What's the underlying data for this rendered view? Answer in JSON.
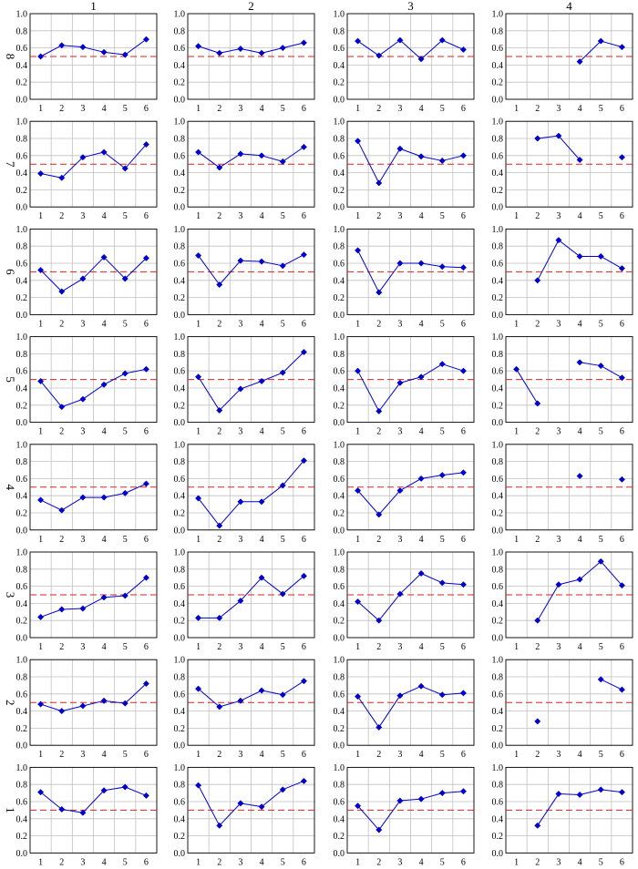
{
  "colors": {
    "series": "#0000cc",
    "threshold": "#dd2222",
    "grid": "#c0c0c0",
    "axis": "#000000"
  },
  "chart_data": {
    "type": "line",
    "layout": "small-multiples grid, 8 rows x 4 columns",
    "column_labels": [
      "1",
      "2",
      "3",
      "4"
    ],
    "row_labels": [
      "8",
      "7",
      "6",
      "5",
      "4",
      "3",
      "2",
      "1"
    ],
    "x": [
      1,
      2,
      3,
      4,
      5,
      6
    ],
    "xticks": [
      "1",
      "2",
      "3",
      "4",
      "5",
      "6"
    ],
    "yticks": [
      "0.0",
      "0.2",
      "0.4",
      "0.6",
      "0.8",
      "1.0"
    ],
    "ylim": [
      0,
      1
    ],
    "threshold": 0.5,
    "grid": true,
    "panels": [
      [
        [
          0.5,
          0.63,
          0.61,
          0.55,
          0.52,
          0.7
        ],
        [
          0.62,
          0.54,
          0.59,
          0.54,
          0.6,
          0.66
        ],
        [
          0.68,
          0.51,
          0.69,
          0.47,
          0.69,
          0.58
        ],
        [
          null,
          null,
          null,
          0.44,
          0.68,
          0.61
        ]
      ],
      [
        [
          0.39,
          0.34,
          0.58,
          0.64,
          0.45,
          0.73
        ],
        [
          0.64,
          0.46,
          0.62,
          0.6,
          0.53,
          0.7
        ],
        [
          0.77,
          0.28,
          0.68,
          0.59,
          0.54,
          0.6
        ],
        [
          null,
          0.8,
          0.83,
          0.55,
          null,
          0.58
        ]
      ],
      [
        [
          0.52,
          0.27,
          0.42,
          0.67,
          0.42,
          0.66
        ],
        [
          0.69,
          0.35,
          0.63,
          0.62,
          0.57,
          0.7
        ],
        [
          0.75,
          0.26,
          0.6,
          0.6,
          0.56,
          0.55
        ],
        [
          null,
          0.4,
          0.87,
          0.68,
          0.68,
          0.54
        ]
      ],
      [
        [
          0.48,
          0.18,
          0.27,
          0.44,
          0.57,
          0.62
        ],
        [
          0.53,
          0.14,
          0.39,
          0.48,
          0.58,
          0.82
        ],
        [
          0.6,
          0.13,
          0.46,
          0.53,
          0.68,
          0.6
        ],
        [
          0.62,
          0.22,
          null,
          0.7,
          0.66,
          0.52
        ]
      ],
      [
        [
          0.35,
          0.23,
          0.38,
          0.38,
          0.43,
          0.54
        ],
        [
          0.37,
          0.05,
          0.33,
          0.33,
          0.52,
          0.81
        ],
        [
          0.46,
          0.18,
          0.46,
          0.6,
          0.64,
          0.67
        ],
        [
          null,
          null,
          null,
          0.63,
          null,
          0.59
        ]
      ],
      [
        [
          0.24,
          0.33,
          0.34,
          0.47,
          0.49,
          0.7
        ],
        [
          0.23,
          0.23,
          0.43,
          0.7,
          0.51,
          0.72
        ],
        [
          0.42,
          0.2,
          0.51,
          0.75,
          0.64,
          0.62
        ],
        [
          null,
          0.2,
          0.62,
          0.68,
          0.89,
          0.61
        ]
      ],
      [
        [
          0.48,
          0.4,
          0.46,
          0.52,
          0.49,
          0.72
        ],
        [
          0.66,
          0.45,
          0.52,
          0.64,
          0.59,
          0.75
        ],
        [
          0.57,
          0.21,
          0.58,
          0.69,
          0.59,
          0.61
        ],
        [
          null,
          0.28,
          null,
          null,
          0.77,
          0.65
        ]
      ],
      [
        [
          0.71,
          0.51,
          0.47,
          0.73,
          0.77,
          0.67
        ],
        [
          0.79,
          0.32,
          0.58,
          0.54,
          0.74,
          0.84
        ],
        [
          0.55,
          0.27,
          0.61,
          0.63,
          0.7,
          0.72
        ],
        [
          null,
          0.32,
          0.69,
          0.68,
          0.74,
          0.71
        ]
      ]
    ]
  }
}
